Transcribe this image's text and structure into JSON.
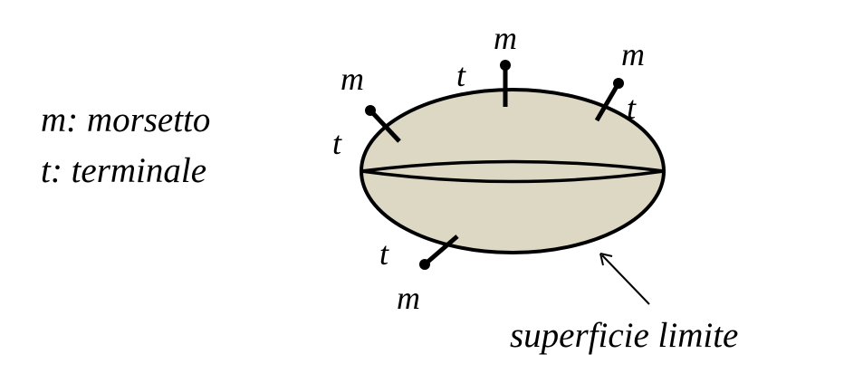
{
  "legend": {
    "m_line": "m: morsetto",
    "t_line": "t: terminale"
  },
  "labels": {
    "m": "m",
    "t": "t",
    "surface": "superficie limite"
  },
  "colors": {
    "fill": "#ddd8c4",
    "stroke": "#000000"
  }
}
